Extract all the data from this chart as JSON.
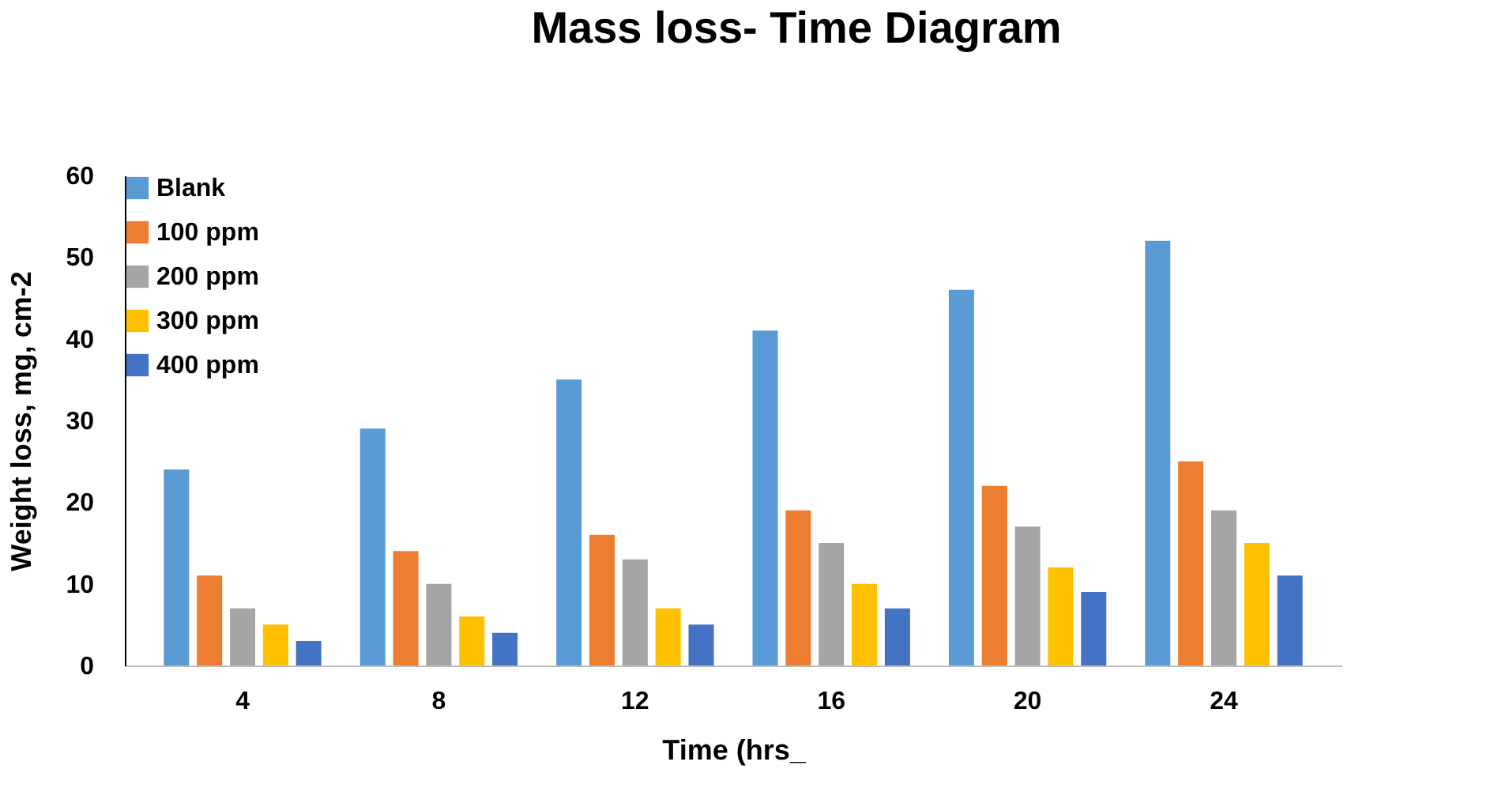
{
  "chart_data": {
    "type": "bar",
    "title": "Mass loss- Time Diagram",
    "xlabel": "Time (hrs_",
    "ylabel": "Weight loss, mg, cm-2",
    "categories": [
      "4",
      "8",
      "12",
      "16",
      "20",
      "24"
    ],
    "series": [
      {
        "name": "Blank",
        "color": "#5b9bd5",
        "values": [
          24,
          29,
          35,
          41,
          46,
          52
        ]
      },
      {
        "name": "100 ppm",
        "color": "#ed7d31",
        "values": [
          11,
          14,
          16,
          19,
          22,
          25
        ]
      },
      {
        "name": "200 ppm",
        "color": "#a5a5a5",
        "values": [
          7,
          10,
          13,
          15,
          17,
          19
        ]
      },
      {
        "name": "300 ppm",
        "color": "#ffc000",
        "values": [
          5,
          6,
          7,
          10,
          12,
          15
        ]
      },
      {
        "name": "400 ppm",
        "color": "#4472c4",
        "values": [
          3,
          4,
          5,
          7,
          9,
          11
        ]
      }
    ],
    "ylim": [
      0,
      60
    ],
    "yticks": [
      0,
      10,
      20,
      30,
      40,
      50,
      60
    ],
    "grid": false,
    "legend": "top left"
  }
}
